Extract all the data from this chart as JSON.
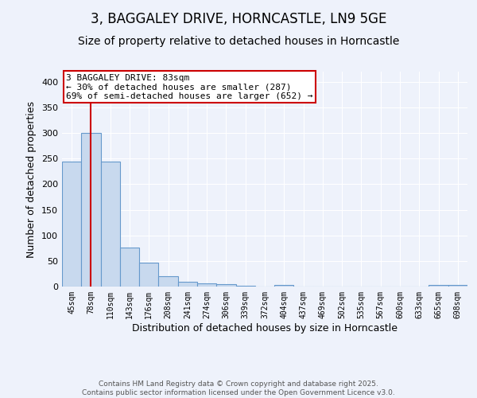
{
  "title": "3, BAGGALEY DRIVE, HORNCASTLE, LN9 5GE",
  "subtitle": "Size of property relative to detached houses in Horncastle",
  "xlabel": "Distribution of detached houses by size in Horncastle",
  "ylabel": "Number of detached properties",
  "categories": [
    "45sqm",
    "78sqm",
    "110sqm",
    "143sqm",
    "176sqm",
    "208sqm",
    "241sqm",
    "274sqm",
    "306sqm",
    "339sqm",
    "372sqm",
    "404sqm",
    "437sqm",
    "469sqm",
    "502sqm",
    "535sqm",
    "567sqm",
    "600sqm",
    "633sqm",
    "665sqm",
    "698sqm"
  ],
  "values": [
    245,
    300,
    245,
    77,
    47,
    21,
    10,
    7,
    4,
    1,
    0,
    3,
    0,
    0,
    0,
    0,
    0,
    0,
    0,
    3,
    3
  ],
  "bar_color": "#c8d9ee",
  "bar_edge_color": "#6699cc",
  "property_line_x": 1.0,
  "annotation_line1": "3 BAGGALEY DRIVE: 83sqm",
  "annotation_line2": "← 30% of detached houses are smaller (287)",
  "annotation_line3": "69% of semi-detached houses are larger (652) →",
  "annotation_box_color": "#ffffff",
  "annotation_box_edge_color": "#cc0000",
  "vline_color": "#cc0000",
  "ylim": [
    0,
    420
  ],
  "yticks": [
    0,
    50,
    100,
    150,
    200,
    250,
    300,
    350,
    400
  ],
  "footer_line1": "Contains HM Land Registry data © Crown copyright and database right 2025.",
  "footer_line2": "Contains public sector information licensed under the Open Government Licence v3.0.",
  "background_color": "#eef2fb",
  "grid_color": "#ffffff",
  "title_fontsize": 12,
  "subtitle_fontsize": 10,
  "annotation_fontsize": 8,
  "ylabel_fontsize": 9,
  "xlabel_fontsize": 9,
  "tick_fontsize": 7,
  "footer_fontsize": 6.5
}
